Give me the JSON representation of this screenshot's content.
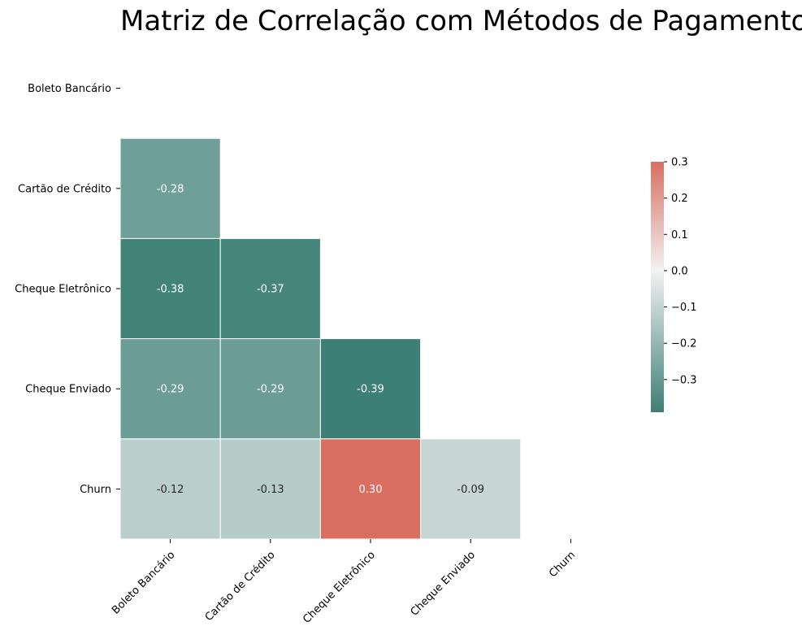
{
  "chart_data": {
    "type": "heatmap",
    "title": "Matriz de Correlação com Métodos de Pagamento",
    "variables": [
      "Boleto Bancário",
      "Cartão de Crédito",
      "Cheque Eletrônico",
      "Cheque Enviado",
      "Churn"
    ],
    "matrix": [
      [
        null,
        null,
        null,
        null,
        null
      ],
      [
        -0.28,
        null,
        null,
        null,
        null
      ],
      [
        -0.38,
        -0.37,
        null,
        null,
        null
      ],
      [
        -0.29,
        -0.29,
        -0.39,
        null,
        null
      ],
      [
        -0.12,
        -0.13,
        0.3,
        -0.09,
        null
      ]
    ],
    "cell_labels": [
      [
        null,
        null,
        null,
        null,
        null
      ],
      [
        "-0.28",
        null,
        null,
        null,
        null
      ],
      [
        "-0.38",
        "-0.37",
        null,
        null,
        null
      ],
      [
        "-0.29",
        "-0.29",
        "-0.39",
        null,
        null
      ],
      [
        "-0.12",
        "-0.13",
        "0.30",
        "-0.09",
        null
      ]
    ],
    "mask": "upper-triangle-including-diagonal",
    "colorbar": {
      "range": [
        -0.39,
        0.3
      ],
      "ticks": [
        0.3,
        0.2,
        0.1,
        0.0,
        -0.1,
        -0.2,
        -0.3
      ],
      "tick_labels": [
        "0.3",
        "0.2",
        "0.1",
        "0.0",
        "−0.1",
        "−0.2",
        "−0.3"
      ],
      "colors": {
        "low": "#3c7f76",
        "mid": "#f2f2f2",
        "high": "#da6e60"
      }
    },
    "x_tick_rotation_deg": 45
  }
}
